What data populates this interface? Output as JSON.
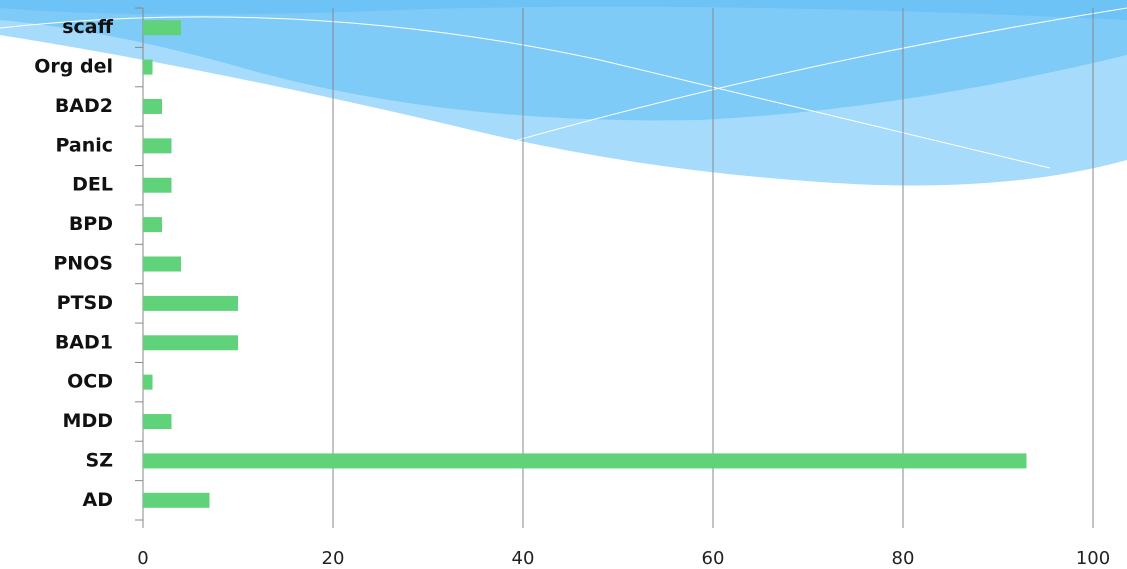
{
  "chart_data": {
    "type": "bar",
    "orientation": "horizontal",
    "categories": [
      "AD",
      "SZ",
      "MDD",
      "OCD",
      "BAD1",
      "PTSD",
      "PNOS",
      "BPD",
      "DEL",
      "Panic",
      "BAD2",
      "Org del",
      "scaff"
    ],
    "values": [
      7,
      93,
      3,
      1,
      10,
      10,
      4,
      2,
      3,
      3,
      2,
      1,
      4
    ],
    "color": "#5fd27a",
    "xlim": [
      0,
      100
    ],
    "xticks": [
      0,
      20,
      40,
      60,
      80,
      100
    ],
    "grid": true
  }
}
